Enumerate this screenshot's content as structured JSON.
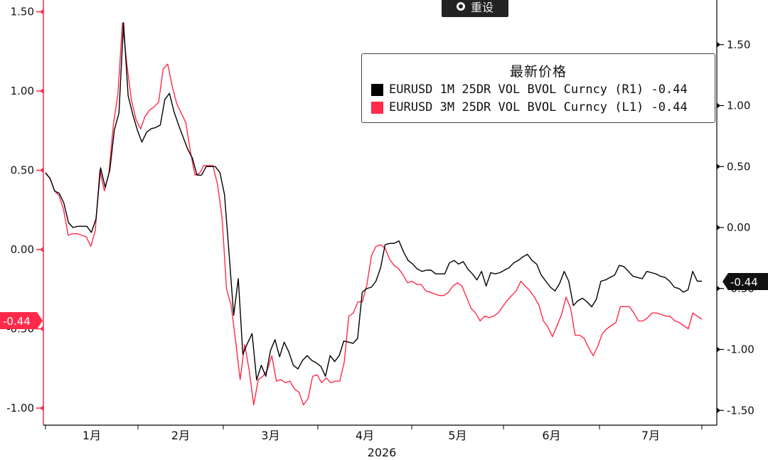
{
  "toolbar": {
    "reset_label": "重设"
  },
  "legend": {
    "title": "最新价格",
    "items": [
      {
        "label": "EURUSD 1M 25DR VOL BVOL Curncy",
        "axis": "(R1)",
        "value": "-0.44",
        "color": "#000000"
      },
      {
        "label": "EURUSD 3M 25DR VOL BVOL Curncy",
        "axis": "(L1)",
        "value": "-0.44",
        "color": "#ff2a4a"
      }
    ]
  },
  "chart_data": {
    "type": "line",
    "x_axis": {
      "year_label": "2026",
      "month_labels": [
        "1月",
        "2月",
        "3月",
        "4月",
        "5月",
        "6月",
        "7月"
      ]
    },
    "left_axis": {
      "ylim": [
        -1.05,
        1.6
      ],
      "ticks": [
        "1.50",
        "1.00",
        "0.50",
        "0.00",
        "-0.50",
        "-1.00"
      ],
      "color": "#ff2a4a",
      "last_value_label": "-0.44"
    },
    "right_axis": {
      "ylim": [
        -1.55,
        1.85
      ],
      "ticks": [
        "1.50",
        "1.00",
        "0.50",
        "0.00",
        "-0.50",
        "-1.00",
        "-1.50"
      ],
      "color": "#000000",
      "last_value_label": "-0.44"
    },
    "series": [
      {
        "name": "EURUSD 1M 25DR VOL BVOL Curncy",
        "axis": "right",
        "color": "#000000",
        "values": [
          0.45,
          0.4,
          0.3,
          0.28,
          0.2,
          0.04,
          0.0,
          0.01,
          0.01,
          0.01,
          -0.04,
          0.07,
          0.49,
          0.33,
          0.47,
          0.8,
          0.94,
          1.68,
          1.08,
          0.93,
          0.8,
          0.7,
          0.78,
          0.81,
          0.82,
          0.84,
          1.05,
          1.1,
          0.95,
          0.84,
          0.74,
          0.64,
          0.57,
          0.43,
          0.43,
          0.5,
          0.5,
          0.5,
          0.45,
          0.27,
          -0.22,
          -0.72,
          -0.42,
          -1.04,
          -0.95,
          -0.87,
          -1.25,
          -1.13,
          -1.22,
          -1.01,
          -0.92,
          -1.06,
          -0.94,
          -1.02,
          -1.13,
          -1.16,
          -1.09,
          -1.05,
          -1.09,
          -1.11,
          -1.14,
          -1.22,
          -1.05,
          -1.1,
          -1.05,
          -0.93,
          -0.94,
          -0.95,
          -0.91,
          -0.53,
          -0.5,
          -0.49,
          -0.44,
          -0.33,
          -0.14,
          -0.13,
          -0.13,
          -0.11,
          -0.2,
          -0.27,
          -0.3,
          -0.34,
          -0.36,
          -0.35,
          -0.35,
          -0.38,
          -0.38,
          -0.38,
          -0.29,
          -0.27,
          -0.3,
          -0.28,
          -0.34,
          -0.38,
          -0.43,
          -0.36,
          -0.48,
          -0.37,
          -0.38,
          -0.37,
          -0.35,
          -0.33,
          -0.29,
          -0.27,
          -0.24,
          -0.22,
          -0.27,
          -0.3,
          -0.39,
          -0.44,
          -0.49,
          -0.52,
          -0.46,
          -0.36,
          -0.44,
          -0.64,
          -0.6,
          -0.58,
          -0.61,
          -0.65,
          -0.59,
          -0.44,
          -0.43,
          -0.41,
          -0.39,
          -0.31,
          -0.32,
          -0.36,
          -0.4,
          -0.41,
          -0.42,
          -0.36,
          -0.37,
          -0.38,
          -0.4,
          -0.41,
          -0.44,
          -0.49,
          -0.5,
          -0.53,
          -0.51,
          -0.36,
          -0.44,
          -0.44
        ]
      },
      {
        "name": "EURUSD 3M 25DR VOL BVOL Curncy",
        "axis": "left",
        "color": "#ff2a4a",
        "values": [
          0.48,
          0.45,
          0.37,
          0.34,
          0.25,
          0.09,
          0.1,
          0.1,
          0.09,
          0.08,
          0.02,
          0.12,
          0.5,
          0.37,
          0.48,
          0.79,
          0.98,
          1.43,
          1.16,
          0.94,
          0.82,
          0.76,
          0.84,
          0.88,
          0.9,
          0.93,
          1.14,
          1.17,
          1.03,
          0.92,
          0.86,
          0.8,
          0.62,
          0.47,
          0.48,
          0.53,
          0.53,
          0.53,
          0.41,
          0.2,
          -0.25,
          -0.35,
          -0.58,
          -0.82,
          -0.6,
          -0.76,
          -0.98,
          -0.82,
          -0.8,
          -0.76,
          -0.67,
          -0.83,
          -0.82,
          -0.84,
          -0.83,
          -0.88,
          -0.9,
          -0.98,
          -0.94,
          -0.8,
          -0.79,
          -0.84,
          -0.81,
          -0.84,
          -0.83,
          -0.83,
          -0.71,
          -0.42,
          -0.4,
          -0.33,
          -0.33,
          -0.22,
          -0.04,
          0.02,
          0.03,
          0.01,
          -0.06,
          -0.1,
          -0.12,
          -0.16,
          -0.21,
          -0.2,
          -0.22,
          -0.22,
          -0.26,
          -0.27,
          -0.28,
          -0.29,
          -0.29,
          -0.27,
          -0.23,
          -0.21,
          -0.23,
          -0.3,
          -0.37,
          -0.4,
          -0.45,
          -0.42,
          -0.43,
          -0.42,
          -0.4,
          -0.36,
          -0.32,
          -0.29,
          -0.26,
          -0.2,
          -0.23,
          -0.26,
          -0.3,
          -0.35,
          -0.45,
          -0.49,
          -0.55,
          -0.48,
          -0.41,
          -0.3,
          -0.37,
          -0.54,
          -0.54,
          -0.56,
          -0.62,
          -0.67,
          -0.61,
          -0.53,
          -0.5,
          -0.48,
          -0.46,
          -0.36,
          -0.36,
          -0.36,
          -0.4,
          -0.45,
          -0.45,
          -0.43,
          -0.4,
          -0.4,
          -0.41,
          -0.42,
          -0.42,
          -0.45,
          -0.46,
          -0.48,
          -0.5,
          -0.4,
          -0.42,
          -0.44
        ]
      }
    ]
  }
}
